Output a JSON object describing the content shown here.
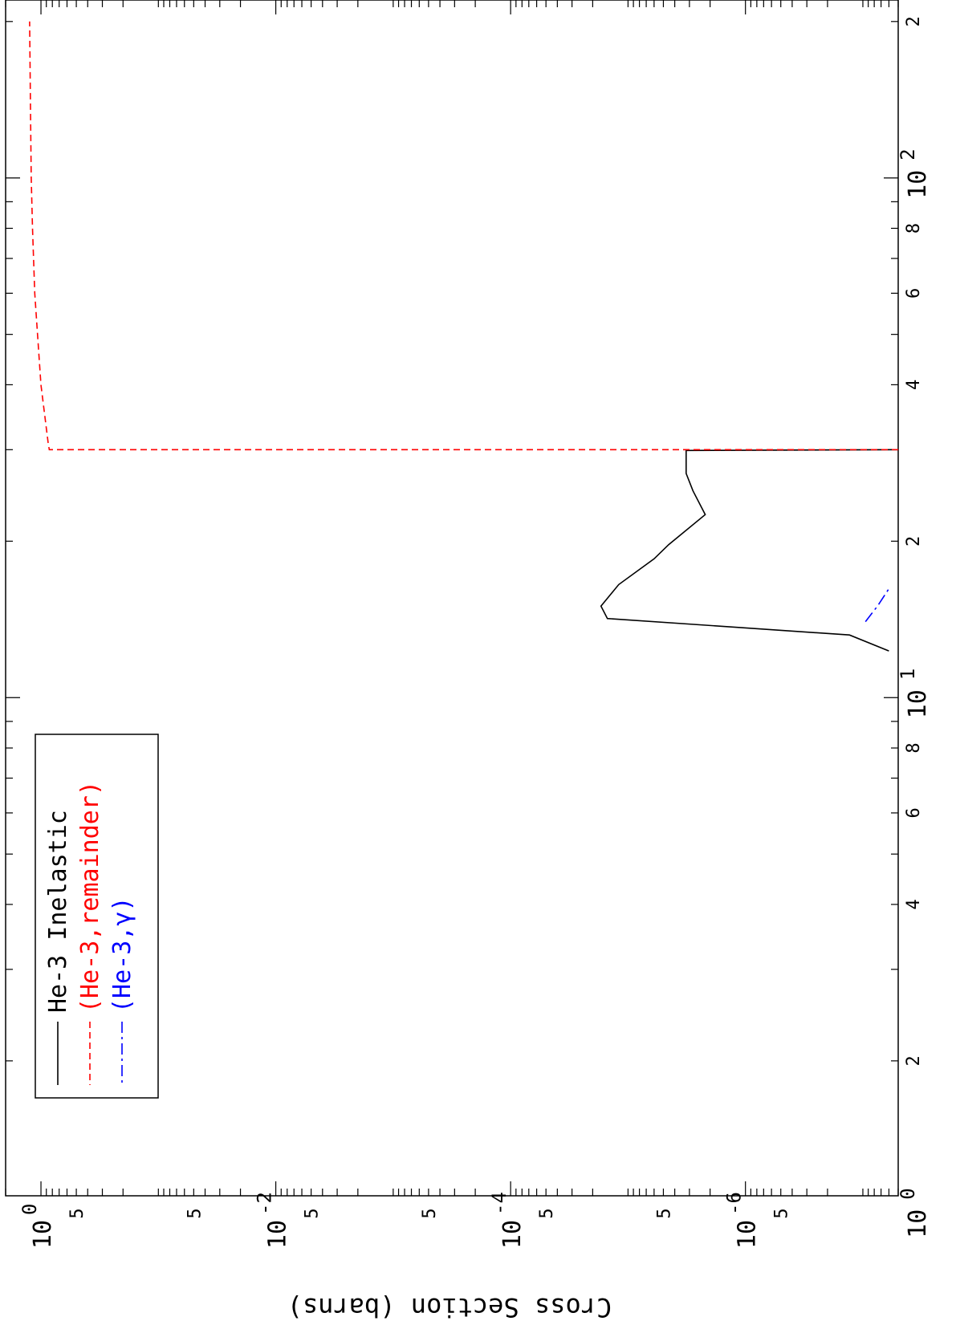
{
  "chart_data": {
    "type": "line",
    "orientation": "rotated-90-cw",
    "title": "",
    "xlabel": "",
    "ylabel": "Cross Section (barns)",
    "x_scale": "log",
    "y_scale": "log",
    "xlim": [
      1.1,
      220
    ],
    "ylim": [
      5e-08,
      2.0
    ],
    "x_ticks_major": [
      {
        "value": 1,
        "label": "10",
        "exp": "0"
      },
      {
        "value": 10,
        "label": "10",
        "exp": "1"
      },
      {
        "value": 100,
        "label": "10",
        "exp": "2"
      }
    ],
    "x_ticks_minor_labeled": [
      {
        "value": 2,
        "label": "2"
      },
      {
        "value": 4,
        "label": "4"
      },
      {
        "value": 6,
        "label": "6"
      },
      {
        "value": 8,
        "label": "8"
      },
      {
        "value": 20,
        "label": "2"
      },
      {
        "value": 40,
        "label": "4"
      },
      {
        "value": 60,
        "label": "6"
      },
      {
        "value": 80,
        "label": "8"
      },
      {
        "value": 200,
        "label": "2"
      }
    ],
    "y_ticks_major": [
      {
        "value": 1,
        "label": "10",
        "exp": "0"
      },
      {
        "value": 0.01,
        "label": "10",
        "exp": "-2"
      },
      {
        "value": 0.0001,
        "label": "10",
        "exp": "-4"
      },
      {
        "value": 1e-06,
        "label": "10",
        "exp": "-6"
      }
    ],
    "y_ticks_minor_labeled": [
      {
        "value": 0.5,
        "label": "5"
      },
      {
        "value": 0.05,
        "label": "5"
      },
      {
        "value": 0.005,
        "label": "5"
      },
      {
        "value": 0.0005,
        "label": "5"
      },
      {
        "value": 5e-05,
        "label": "5"
      },
      {
        "value": 5e-06,
        "label": "5"
      },
      {
        "value": 5e-07,
        "label": "5"
      }
    ],
    "grid": false,
    "legend_position": "top-left",
    "series": [
      {
        "name": "He-3 Inelastic",
        "color": "#000000",
        "dash": "solid",
        "x": [
          12.3,
          13.2,
          14.2,
          15.0,
          16.5,
          18.5,
          19.7,
          22.5,
          25.0,
          27.0,
          29.9,
          30.0
        ],
        "y": [
          6e-08,
          1.3e-07,
          1.5e-05,
          1.7e-05,
          1.2e-05,
          6e-06,
          4.5e-06,
          2.2e-06,
          2.8e-06,
          3.2e-06,
          3.2e-06,
          0.0
        ]
      },
      {
        "name": "(He-3,remainder)",
        "color": "#ff0000",
        "dash": "dashed",
        "x": [
          30.0,
          30.0,
          31.0,
          40.0,
          60.0,
          80.0,
          100.0,
          140.0,
          200.0
        ],
        "y": [
          0.0,
          0.85,
          0.87,
          1.0,
          1.13,
          1.18,
          1.21,
          1.23,
          1.25
        ]
      },
      {
        "name": "(He-3,γ)",
        "color": "#0000ff",
        "dash": "dashdot",
        "x": [
          14.0,
          15.0,
          16.2
        ],
        "y": [
          9.5e-08,
          7.5e-08,
          6e-08
        ]
      }
    ]
  }
}
